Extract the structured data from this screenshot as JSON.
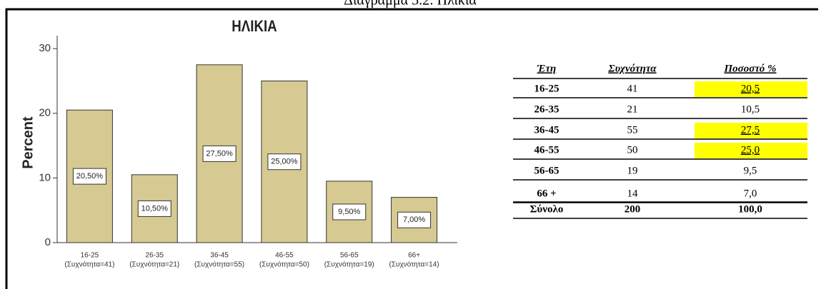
{
  "caption": "Διάγραμμα 5.2: Ηλικία",
  "chart_data": {
    "type": "bar",
    "title": "ΗΛΙΚΙΑ",
    "ylabel": "Percent",
    "categories": [
      "16-25",
      "26-35",
      "36-45",
      "46-55",
      "56-65",
      "66+"
    ],
    "category_sublabels": [
      "(Συχνότητα=41)",
      "(Συχνότητα=21)",
      "(Συχνότητα=55)",
      "(Συχνότητα=50)",
      "(Συχνότητα=19)",
      "(Συχνότητα=14)"
    ],
    "values": [
      20.5,
      10.5,
      27.5,
      25,
      9.5,
      7
    ],
    "value_labels": [
      "20,50%",
      "10,50%",
      "27,50%",
      "25,00%",
      "9,50%",
      "7,00%"
    ],
    "color": "#d6ca92",
    "ylim": [
      0,
      32
    ],
    "yticks": [
      0,
      10,
      20,
      30
    ]
  },
  "table": {
    "header": [
      "Έτη",
      "Συχνότητα",
      "Ποσοστό %"
    ],
    "rows": [
      [
        "16-25",
        "41",
        "20,5"
      ],
      [
        "26-35",
        "21",
        "10,5"
      ],
      [
        "36-45",
        "55",
        "27,5"
      ],
      [
        "46-55",
        "50",
        "25,0"
      ],
      [
        "56-65",
        "19",
        "9,5"
      ],
      [
        "66 +",
        "14",
        "7,0"
      ],
      [
        "Σύνολο",
        "200",
        "100,0"
      ]
    ],
    "highlight": [
      true,
      false,
      true,
      true,
      false,
      false,
      false
    ]
  }
}
